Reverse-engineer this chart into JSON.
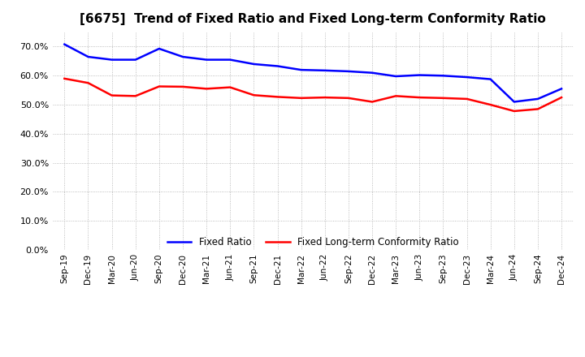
{
  "title": "[6675]  Trend of Fixed Ratio and Fixed Long-term Conformity Ratio",
  "x_labels": [
    "Sep-19",
    "Dec-19",
    "Mar-20",
    "Jun-20",
    "Sep-20",
    "Dec-20",
    "Mar-21",
    "Jun-21",
    "Sep-21",
    "Dec-21",
    "Mar-22",
    "Jun-22",
    "Sep-22",
    "Dec-22",
    "Mar-23",
    "Jun-23",
    "Sep-23",
    "Dec-23",
    "Mar-24",
    "Jun-24",
    "Sep-24",
    "Dec-24"
  ],
  "fixed_ratio": [
    70.8,
    66.5,
    65.5,
    65.5,
    69.3,
    66.5,
    65.5,
    65.5,
    64.0,
    63.3,
    62.0,
    61.8,
    61.5,
    61.0,
    59.8,
    60.2,
    60.0,
    59.5,
    58.8,
    51.0,
    52.0,
    55.5
  ],
  "fixed_lt_ratio": [
    59.0,
    57.5,
    53.2,
    53.0,
    56.3,
    56.2,
    55.5,
    56.0,
    53.3,
    52.7,
    52.3,
    52.5,
    52.3,
    51.0,
    53.0,
    52.5,
    52.3,
    52.0,
    50.0,
    47.8,
    48.5,
    52.5
  ],
  "fixed_ratio_color": "#0000FF",
  "fixed_lt_ratio_color": "#FF0000",
  "bg_color": "#FFFFFF",
  "grid_color": "#AAAAAA",
  "ylim": [
    0,
    75
  ],
  "yticks": [
    0,
    10,
    20,
    30,
    40,
    50,
    60,
    70
  ],
  "title_fontsize": 11,
  "legend_labels": [
    "Fixed Ratio",
    "Fixed Long-term Conformity Ratio"
  ]
}
